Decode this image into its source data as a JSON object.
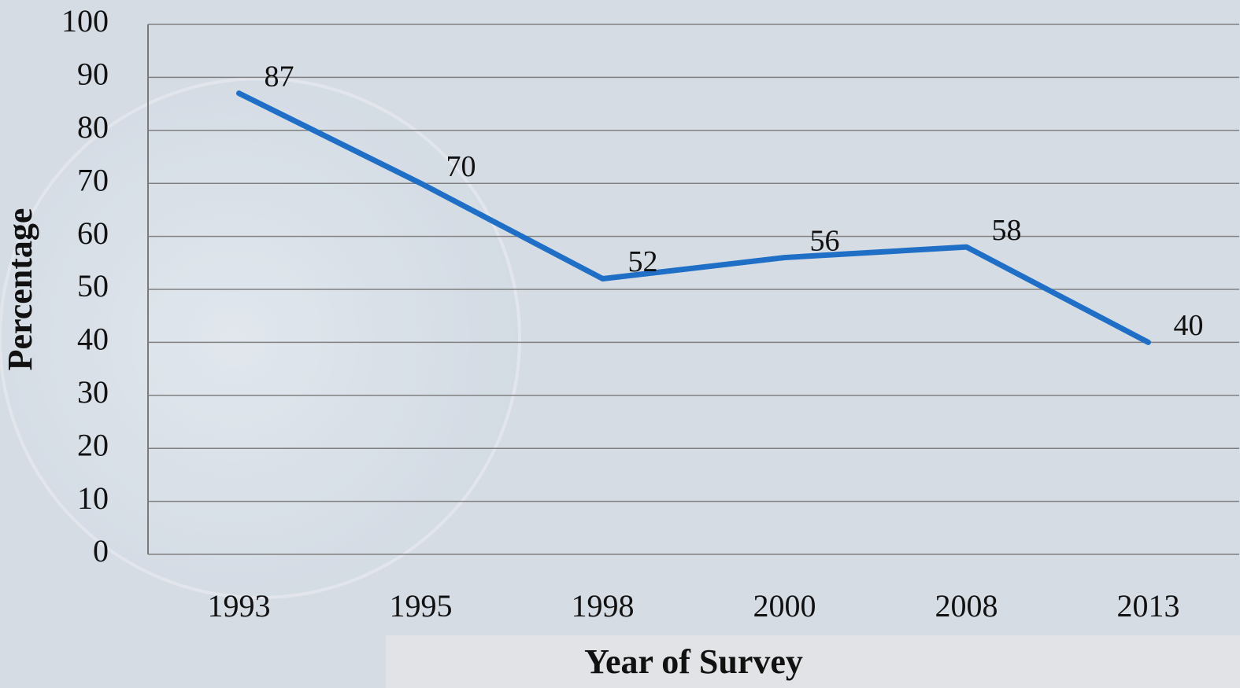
{
  "chart_data": {
    "type": "line",
    "x_label": "Year of Survey",
    "y_label": "Percentage",
    "categories": [
      "1993",
      "1995",
      "1998",
      "2000",
      "2008",
      "2013"
    ],
    "values": [
      87,
      70,
      52,
      56,
      58,
      40
    ],
    "color": "#1f6fc6",
    "ylim": [
      0,
      100
    ],
    "yticks": [
      0,
      10,
      20,
      30,
      40,
      50,
      60,
      70,
      80,
      90,
      100
    ],
    "grid": true
  }
}
